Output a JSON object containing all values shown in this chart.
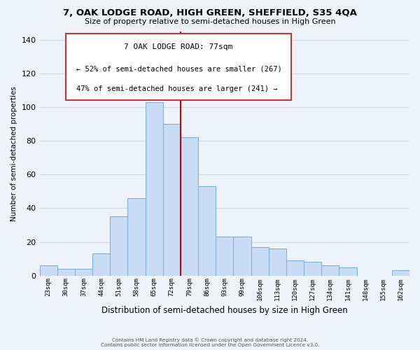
{
  "title": "7, OAK LODGE ROAD, HIGH GREEN, SHEFFIELD, S35 4QA",
  "subtitle": "Size of property relative to semi-detached houses in High Green",
  "xlabel": "Distribution of semi-detached houses by size in High Green",
  "ylabel": "Number of semi-detached properties",
  "bin_labels": [
    "23sqm",
    "30sqm",
    "37sqm",
    "44sqm",
    "51sqm",
    "58sqm",
    "65sqm",
    "72sqm",
    "79sqm",
    "86sqm",
    "93sqm",
    "99sqm",
    "106sqm",
    "113sqm",
    "120sqm",
    "127sqm",
    "134sqm",
    "141sqm",
    "148sqm",
    "155sqm",
    "162sqm"
  ],
  "bar_values": [
    6,
    4,
    4,
    13,
    35,
    46,
    103,
    90,
    82,
    53,
    23,
    23,
    17,
    16,
    9,
    8,
    6,
    5,
    0,
    0,
    3
  ],
  "bar_color": "#c9dcf5",
  "bar_edge_color": "#7baad4",
  "vline_color": "#cc0000",
  "ylim": [
    0,
    145
  ],
  "yticks": [
    0,
    20,
    40,
    60,
    80,
    100,
    120,
    140
  ],
  "annotation_title": "7 OAK LODGE ROAD: 77sqm",
  "annotation_line1": "← 52% of semi-detached houses are smaller (267)",
  "annotation_line2": "47% of semi-detached houses are larger (241) →",
  "footnote1": "Contains HM Land Registry data © Crown copyright and database right 2024.",
  "footnote2": "Contains public sector information licensed under the Open Government Licence v3.0.",
  "background_color": "#eef2fb",
  "grid_color": "#d0d8ec",
  "box_facecolor": "#ffffff",
  "box_edge_color": "#cc3333",
  "vline_index": 8
}
